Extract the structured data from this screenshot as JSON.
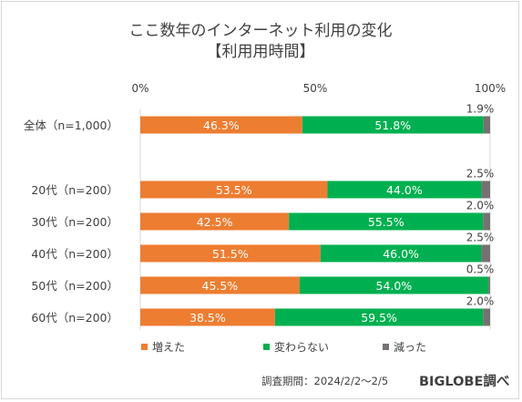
{
  "chart_data": {
    "type": "bar",
    "orientation": "horizontal",
    "stacked": "percent",
    "title": "ここ数年のインターネット利用の変化",
    "subtitle": "【利用用時間】",
    "xlim": [
      0,
      100
    ],
    "xticks": [
      "0%",
      "50%",
      "100%"
    ],
    "categories": [
      "全体（n=1,000）",
      "20代（n=200）",
      "30代（n=200）",
      "40代（n=200）",
      "50代（n=200）",
      "60代（n=200）"
    ],
    "series": [
      {
        "name": "増えた",
        "color": "#ed7d31",
        "values": [
          46.3,
          53.5,
          42.5,
          51.5,
          45.5,
          38.5
        ],
        "labels": [
          "46.3%",
          "53.5%",
          "42.5%",
          "51.5%",
          "45.5%",
          "38.5%"
        ]
      },
      {
        "name": "変わらない",
        "color": "#00b050",
        "values": [
          51.8,
          44.0,
          55.5,
          46.0,
          54.0,
          59.5
        ],
        "labels": [
          "51.8%",
          "44.0%",
          "55.5%",
          "46.0%",
          "54.0%",
          "59.5%"
        ]
      },
      {
        "name": "減った",
        "color": "#767171",
        "values": [
          1.9,
          2.5,
          2.0,
          2.5,
          0.5,
          2.0
        ],
        "labels": [
          "1.9%",
          "2.5%",
          "2.0%",
          "2.5%",
          "0.5%",
          "2.0%"
        ]
      }
    ],
    "legend_position": "bottom",
    "grid": false
  },
  "caption": "調査期間：2024/2/2～2/5",
  "brand": "BIGLOBE調べ"
}
